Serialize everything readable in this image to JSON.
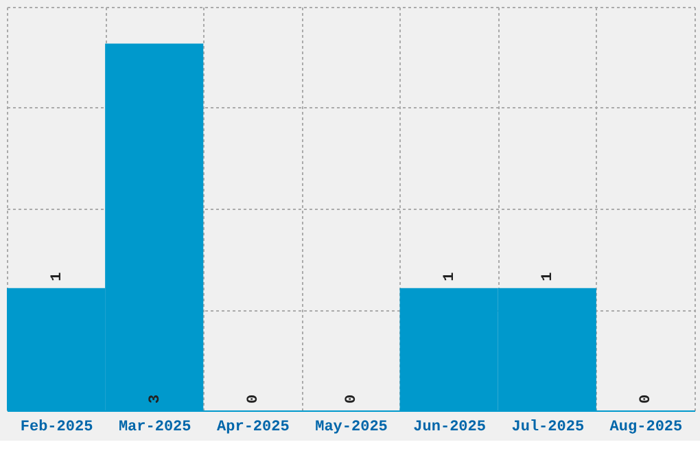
{
  "chart_data": {
    "type": "bar",
    "categories": [
      "Feb-2025",
      "Mar-2025",
      "Apr-2025",
      "May-2025",
      "Jun-2025",
      "Jul-2025",
      "Aug-2025"
    ],
    "values": [
      1,
      3,
      0,
      0,
      1,
      1,
      0
    ],
    "color": "#0099cc",
    "data_labels": true,
    "grid": true,
    "tick_labels": "x",
    "ylim": [
      0,
      3.3
    ],
    "yticks": [
      {
        "value": 0,
        "label": null
      },
      {
        "value": 0.825,
        "label": null
      },
      {
        "value": 1.65,
        "label": null
      },
      {
        "value": 2.475,
        "label": null
      },
      {
        "value": 3.3,
        "label": null
      }
    ]
  }
}
